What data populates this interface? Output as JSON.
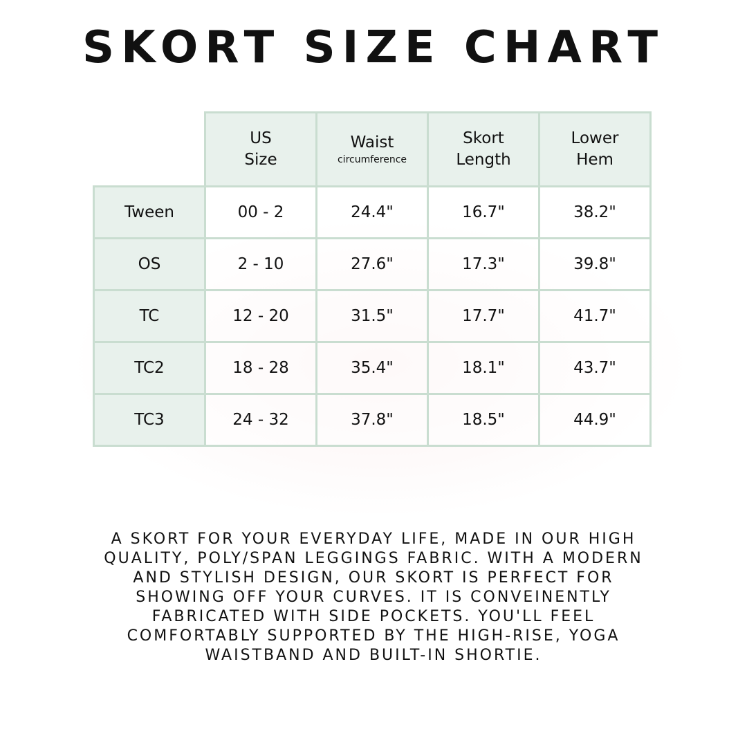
{
  "title": "SKORT SIZE CHART",
  "table": {
    "headers": [
      {
        "line1": "US",
        "line2": "Size",
        "sub": ""
      },
      {
        "line1": "Waist",
        "line2": "",
        "sub": "circumference"
      },
      {
        "line1": "Skort",
        "line2": "Length",
        "sub": ""
      },
      {
        "line1": "Lower",
        "line2": "Hem",
        "sub": ""
      }
    ],
    "rows": [
      {
        "label": "Tween",
        "values": [
          "00 - 2",
          "24.4\"",
          "16.7\"",
          "38.2\""
        ]
      },
      {
        "label": "OS",
        "values": [
          "2 - 10",
          "27.6\"",
          "17.3\"",
          "39.8\""
        ]
      },
      {
        "label": "TC",
        "values": [
          "12 - 20",
          "31.5\"",
          "17.7\"",
          "41.7\""
        ]
      },
      {
        "label": "TC2",
        "values": [
          "18 - 28",
          "35.4\"",
          "18.1\"",
          "43.7\""
        ]
      },
      {
        "label": "TC3",
        "values": [
          "24 - 32",
          "37.8\"",
          "18.5\"",
          "44.9\""
        ]
      }
    ]
  },
  "description_lines": [
    "A SKORT FOR YOUR EVERYDAY LIFE, MADE IN OUR HIGH",
    "QUALITY, POLY/SPAN LEGGINGS FABRIC. WITH A MODERN",
    "AND STYLISH DESIGN, OUR SKORT IS PERFECT FOR",
    "SHOWING OFF YOUR CURVES. IT IS CONVEINENTLY",
    "FABRICATED WITH SIDE POCKETS. YOU'LL FEEL",
    "COMFORTABLY SUPPORTED BY THE HIGH-RISE, YOGA",
    "WAISTBAND AND BUILT-IN SHORTIE."
  ],
  "colors": {
    "header_bg": "#e8f1ec",
    "border": "#c9ddd0"
  }
}
